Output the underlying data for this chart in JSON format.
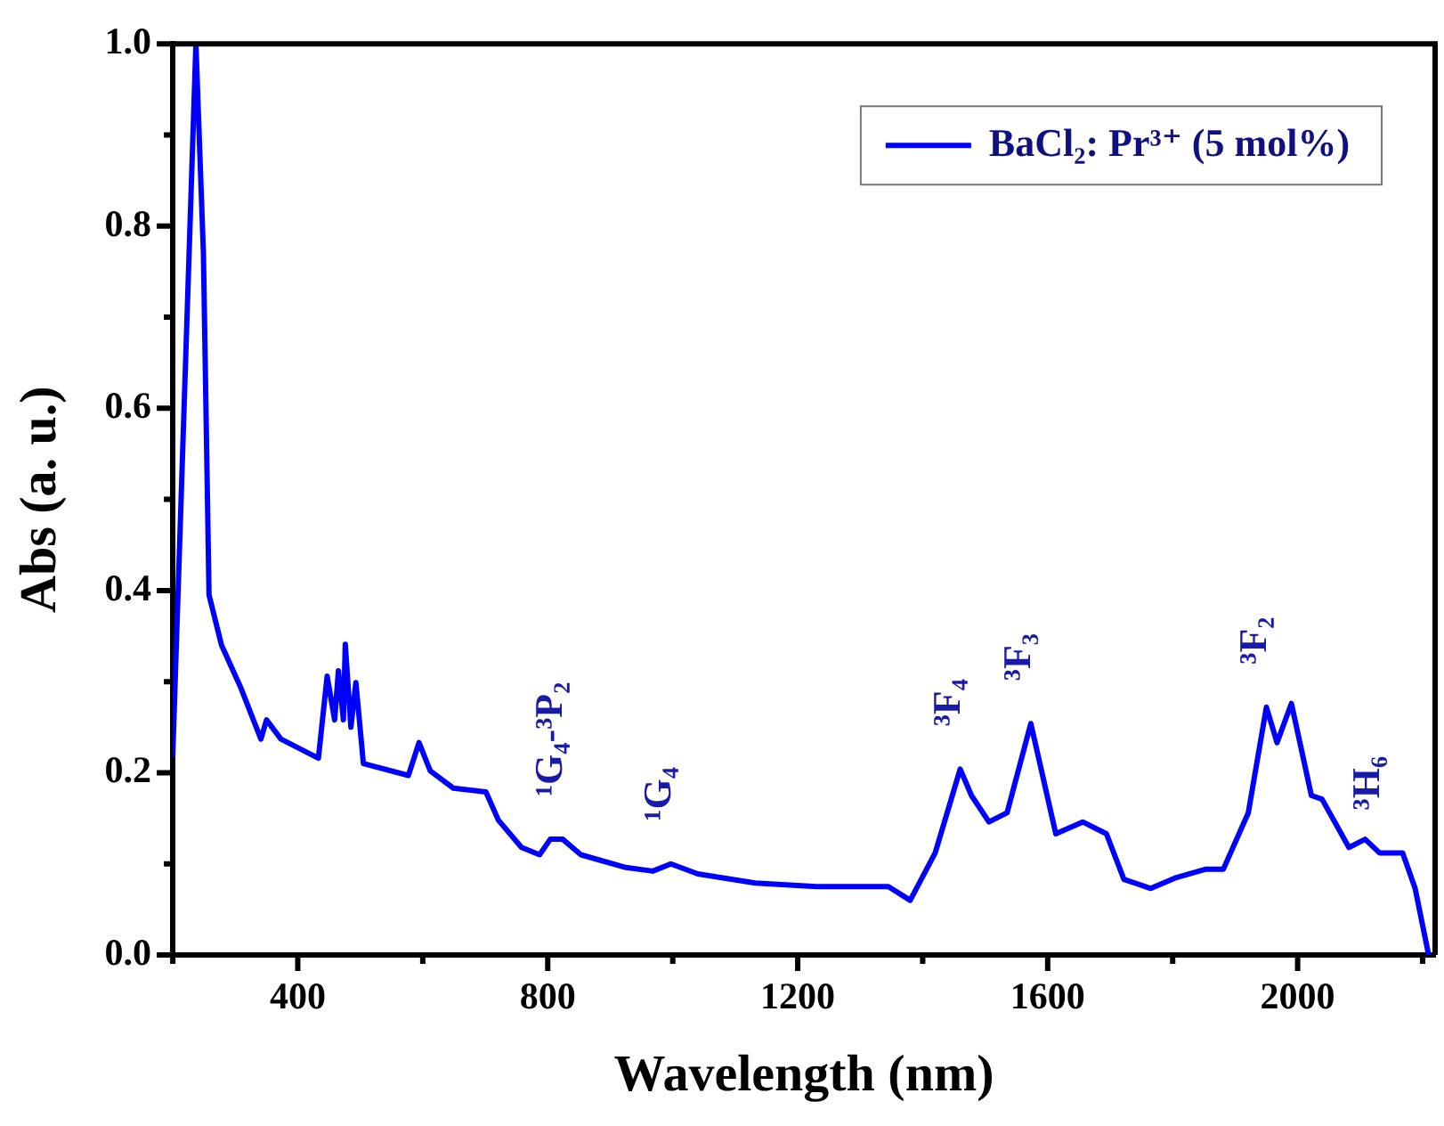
{
  "chart_data": {
    "type": "line",
    "xlabel": "Wavelength (nm)",
    "ylabel": "Abs (a. u.)",
    "xlim": [
      200,
      2220
    ],
    "xticks": [
      {
        "value": 200,
        "label": null
      },
      400,
      {
        "value": 600,
        "label": null
      },
      800,
      {
        "value": 1000,
        "label": null
      },
      1200,
      {
        "value": 1400,
        "label": null
      },
      1600,
      {
        "value": 1800,
        "label": null
      },
      2000,
      {
        "value": 2200,
        "label": null
      }
    ],
    "ylim": [
      0,
      1.0
    ],
    "yticks": [
      "0.0",
      {
        "value": 0.1,
        "label": null
      },
      0.2,
      {
        "value": 0.3,
        "label": null
      },
      0.4,
      {
        "value": 0.5,
        "label": null
      },
      0.6,
      {
        "value": 0.7,
        "label": null
      },
      0.8,
      {
        "value": 0.9,
        "label": null
      },
      "1.0"
    ],
    "grid": false,
    "legend": "top right",
    "marker": "none",
    "line_style": "solid",
    "series": [
      {
        "name": "BaCl₂: Pr³⁺ (5 mol%)",
        "color": "#0000ff",
        "x": [
          200,
          237,
          249,
          258,
          278,
          309,
          341,
          350,
          373,
          433,
          447,
          459,
          465,
          473,
          476,
          485,
          493,
          505,
          577,
          594,
          612,
          649,
          701,
          721,
          758,
          787,
          804,
          824,
          853,
          925,
          968,
          997,
          1040,
          1132,
          1230,
          1345,
          1380,
          1420,
          1460,
          1478,
          1506,
          1535,
          1573,
          1613,
          1656,
          1694,
          1722,
          1765,
          1806,
          1852,
          1881,
          1921,
          1950,
          1967,
          1990,
          2022,
          2039,
          2082,
          2108,
          2131,
          2168,
          2188,
          2209
        ],
        "values": [
          0.22,
          1.0,
          0.77,
          0.395,
          0.34,
          0.293,
          0.237,
          0.258,
          0.237,
          0.216,
          0.306,
          0.258,
          0.312,
          0.258,
          0.341,
          0.25,
          0.299,
          0.21,
          0.197,
          0.233,
          0.202,
          0.183,
          0.179,
          0.148,
          0.118,
          0.11,
          0.127,
          0.127,
          0.11,
          0.096,
          0.092,
          0.1,
          0.089,
          0.079,
          0.075,
          0.075,
          0.06,
          0.112,
          0.204,
          0.175,
          0.146,
          0.156,
          0.254,
          0.133,
          0.146,
          0.133,
          0.083,
          0.073,
          0.085,
          0.094,
          0.094,
          0.156,
          0.272,
          0.233,
          0.276,
          0.175,
          0.171,
          0.118,
          0.127,
          0.112,
          0.112,
          0.073,
          0.002
        ]
      }
    ],
    "annotations": [
      {
        "text": "¹G₄-³P₂",
        "x": 824,
        "y": 0.127
      },
      {
        "text": "¹G₄",
        "x": 997,
        "y": 0.1
      },
      {
        "text": "³F₄",
        "x": 1460,
        "y": 0.204
      },
      {
        "text": "³F₃",
        "x": 1573,
        "y": 0.254
      },
      {
        "text": "³F₂",
        "x": 1950,
        "y": 0.272
      },
      {
        "text": "³H₆",
        "x": 2131,
        "y": 0.112
      }
    ]
  }
}
